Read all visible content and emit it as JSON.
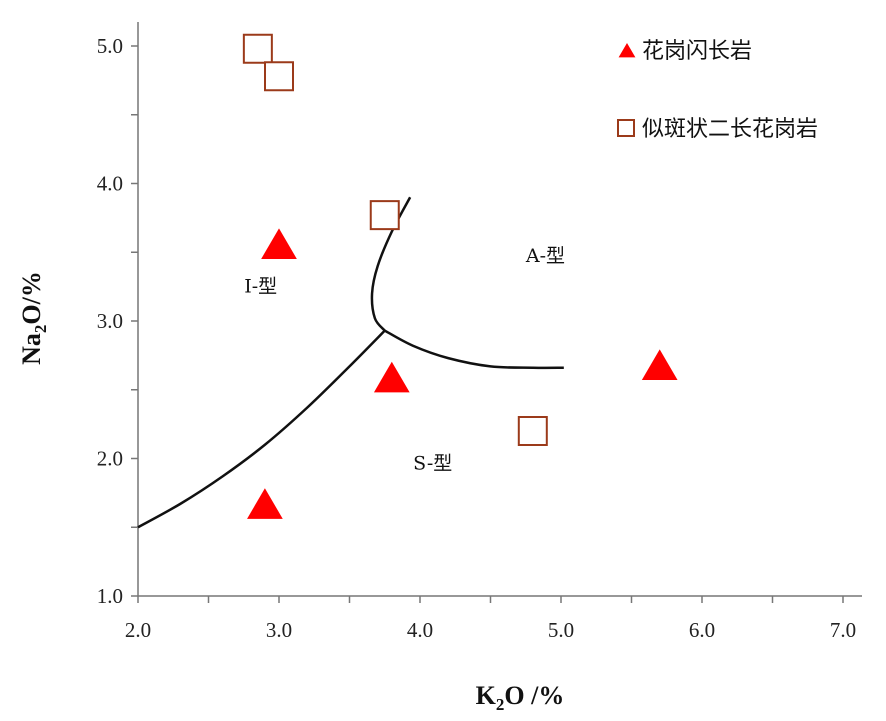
{
  "chart_data": {
    "type": "scatter",
    "title": "",
    "xlabel": {
      "main": "K",
      "sub": "2",
      "rest": "O /%"
    },
    "ylabel": {
      "main": "Na",
      "sub": "2",
      "rest": "O/%"
    },
    "xlim": [
      2.0,
      7.0
    ],
    "ylim": [
      1.0,
      5.0
    ],
    "x_ticks": [
      "2.0",
      "3.0",
      "4.0",
      "5.0",
      "6.0",
      "7.0"
    ],
    "y_ticks": [
      "1.0",
      "2.0",
      "3.0",
      "4.0",
      "5.0"
    ],
    "minor_tick_step": 0.5,
    "grid": false,
    "legend_position": "top-right",
    "series": [
      {
        "name": "花岗闪长岩",
        "marker": "triangle",
        "color": "#ff0000",
        "points": [
          [
            3.0,
            3.55
          ],
          [
            3.8,
            2.58
          ],
          [
            2.9,
            1.66
          ],
          [
            5.7,
            2.67
          ]
        ]
      },
      {
        "name": "似斑状二长花岗岩",
        "marker": "square-open",
        "color": "#9b3a1a",
        "points": [
          [
            2.85,
            4.98
          ],
          [
            3.0,
            4.78
          ],
          [
            3.75,
            3.77
          ],
          [
            4.8,
            2.2
          ]
        ]
      }
    ],
    "boundary_curves": [
      [
        [
          2.0,
          1.5
        ],
        [
          2.3,
          1.67
        ],
        [
          2.6,
          1.87
        ],
        [
          2.9,
          2.1
        ],
        [
          3.2,
          2.37
        ],
        [
          3.5,
          2.67
        ],
        [
          3.75,
          2.93
        ]
      ],
      [
        [
          3.93,
          3.9
        ],
        [
          3.8,
          3.65
        ],
        [
          3.7,
          3.4
        ],
        [
          3.66,
          3.2
        ],
        [
          3.68,
          3.02
        ],
        [
          3.75,
          2.93
        ]
      ],
      [
        [
          3.75,
          2.93
        ],
        [
          3.95,
          2.82
        ],
        [
          4.2,
          2.73
        ],
        [
          4.5,
          2.67
        ],
        [
          4.8,
          2.66
        ],
        [
          5.02,
          2.66
        ]
      ]
    ],
    "annotations": [
      {
        "text": "I-型",
        "x": 2.87,
        "y": 3.26
      },
      {
        "text": "A-型",
        "x": 4.89,
        "y": 3.48
      },
      {
        "text": "S-型",
        "x": 4.09,
        "y": 1.97
      }
    ]
  }
}
